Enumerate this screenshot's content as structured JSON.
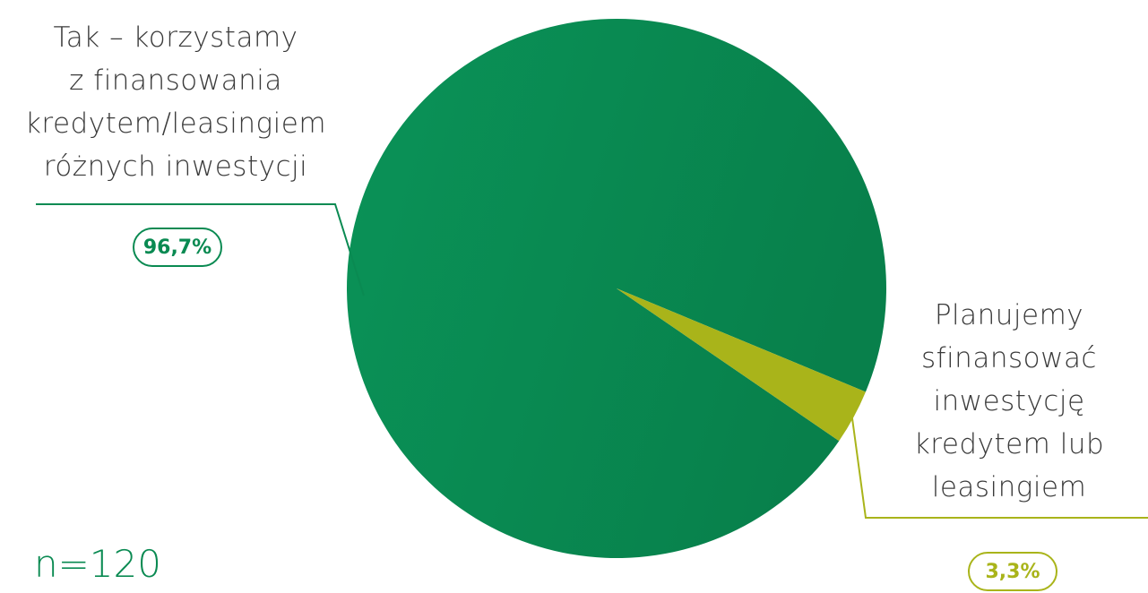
{
  "colors": {
    "main_slice": "#0a8a52",
    "small_slice": "#a9b41a",
    "text": "#3a3a3a"
  },
  "labels": {
    "main_lines": [
      "Tak – korzystamy",
      "z finansowania",
      "kredytem/leasingiem",
      "różnych inwestycji"
    ],
    "small_lines": [
      "Planujemy",
      "sfinansować",
      "inwestycję",
      "kredytem lub",
      "leasingiem"
    ]
  },
  "badges": {
    "main": "96,7%",
    "small": "3,3%"
  },
  "sample_size": "n=120",
  "chart_data": {
    "type": "pie",
    "categories": [
      "Tak – korzystamy z finansowania kredytem/leasingiem różnych inwestycji",
      "Planujemy sfinansować inwestycję kredytem lub leasingiem"
    ],
    "values": [
      96.7,
      3.3
    ],
    "data_labels": [
      "96,7%",
      "3,3%"
    ],
    "colors": [
      "#0a8a52",
      "#a9b41a"
    ],
    "annotation": "n=120"
  }
}
